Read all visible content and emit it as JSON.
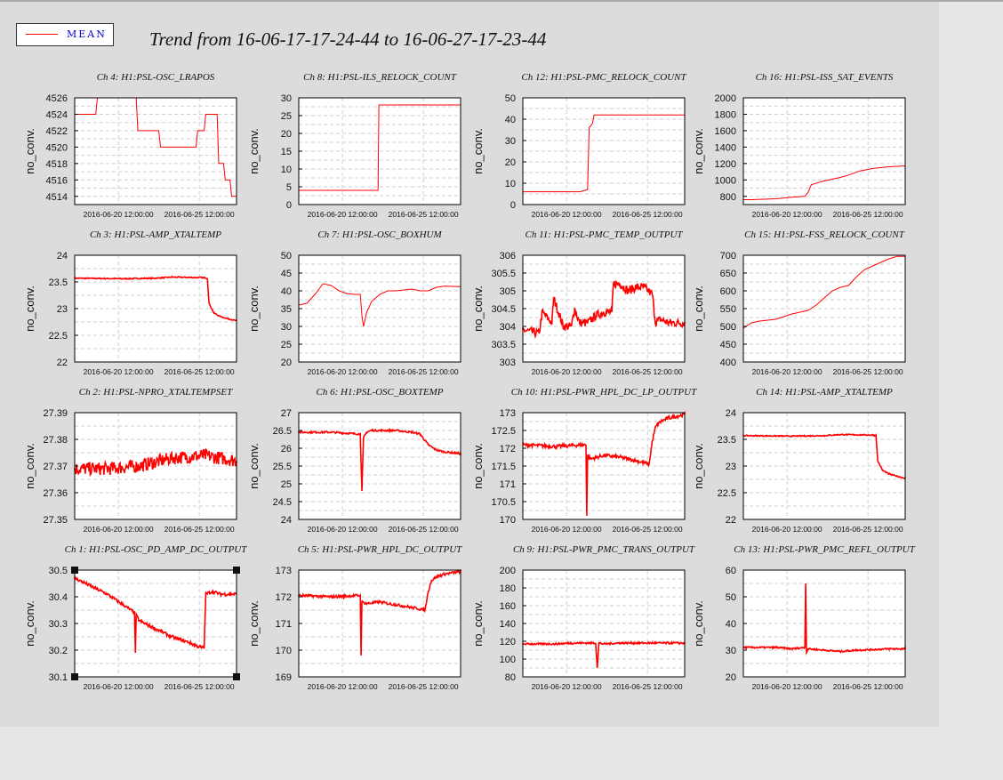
{
  "legend": {
    "label": "MEAN",
    "color": "#ff0000"
  },
  "title": "Trend from 16-06-17-17-24-44 to 16-06-27-17-23-44",
  "chart_data": [
    {
      "type": "line",
      "title": "Ch 4: H1:PSL-OSC_LRAPOS",
      "ylabel": "no_conv.",
      "ylim": [
        4513,
        4526
      ],
      "yticks": [
        4526,
        4524,
        4522,
        4520,
        4518,
        4516,
        4514
      ],
      "yticklabels": [
        "4526",
        "4524",
        "4522",
        "4520",
        "4518",
        "4516",
        "4514"
      ],
      "xticklabels": [
        "2016-06-20 12:00:00",
        "2016-06-25 12:00:00"
      ],
      "grid": true,
      "noise": 0,
      "x": [
        0,
        0.13,
        0.14,
        0.3,
        0.31,
        0.38,
        0.39,
        0.47,
        0.48,
        0.52,
        0.53,
        0.75,
        0.76,
        0.8,
        0.81,
        0.88,
        0.89,
        0.92,
        0.93,
        0.96,
        0.97,
        1.0
      ],
      "y": [
        4524,
        4524,
        4526,
        4526,
        4526,
        4526,
        4522,
        4522,
        4522,
        4522,
        4520,
        4520,
        4522,
        4522,
        4524,
        4524,
        4518,
        4518,
        4516,
        4516,
        4514,
        4514
      ]
    },
    {
      "type": "line",
      "title": "Ch 8: H1:PSL-ILS_RELOCK_COUNT",
      "ylabel": "no_conv.",
      "ylim": [
        0,
        30
      ],
      "yticks": [
        30,
        25,
        20,
        15,
        10,
        5,
        0
      ],
      "yticklabels": [
        "30",
        "25",
        "20",
        "15",
        "10",
        "5",
        "0"
      ],
      "xticklabels": [
        "2016-06-20 12:00:00",
        "2016-06-25 12:00:00"
      ],
      "grid": true,
      "noise": 0,
      "x": [
        0,
        0.49,
        0.495,
        1.0
      ],
      "y": [
        4,
        4,
        28,
        28
      ]
    },
    {
      "type": "line",
      "title": "Ch 12: H1:PSL-PMC_RELOCK_COUNT",
      "ylabel": "no_conv.",
      "ylim": [
        0,
        50
      ],
      "yticks": [
        50,
        40,
        30,
        20,
        10,
        0
      ],
      "yticklabels": [
        "50",
        "40",
        "30",
        "20",
        "10",
        "0"
      ],
      "xticklabels": [
        "2016-06-20 12:00:00",
        "2016-06-25 12:00:00"
      ],
      "grid": true,
      "noise": 0,
      "x": [
        0,
        0.35,
        0.351,
        0.4,
        0.41,
        0.43,
        0.44,
        1.0
      ],
      "y": [
        6,
        6,
        6,
        7,
        36,
        38,
        42,
        42
      ]
    },
    {
      "type": "line",
      "title": "Ch 16: H1:PSL-ISS_SAT_EVENTS",
      "ylabel": "no_conv.",
      "ylim": [
        700,
        2000
      ],
      "yticks": [
        2000,
        1800,
        1600,
        1400,
        1200,
        1000,
        800
      ],
      "yticklabels": [
        "2000",
        "1800",
        "1600",
        "1400",
        "1200",
        "1000",
        "800"
      ],
      "xticklabels": [
        "2016-06-20 12:00:00",
        "2016-06-25 12:00:00"
      ],
      "grid": true,
      "noise": 0,
      "x": [
        0,
        0.05,
        0.2,
        0.3,
        0.38,
        0.4,
        0.42,
        0.48,
        0.55,
        0.6,
        0.65,
        0.72,
        0.8,
        0.9,
        1.0
      ],
      "y": [
        760,
        760,
        770,
        790,
        800,
        850,
        940,
        980,
        1010,
        1030,
        1060,
        1110,
        1140,
        1160,
        1170
      ]
    },
    {
      "type": "line",
      "title": "Ch 3: H1:PSL-AMP_XTALTEMP",
      "ylabel": "no_conv.",
      "ylim": [
        22,
        24
      ],
      "yticks": [
        24,
        23.5,
        23,
        22.5,
        22
      ],
      "yticklabels": [
        "24",
        "23.5",
        "23",
        "22.5",
        "22"
      ],
      "xticklabels": [
        "2016-06-20 12:00:00",
        "2016-06-25 12:00:00"
      ],
      "grid": true,
      "noise": 0.01,
      "x": [
        0,
        0.3,
        0.5,
        0.6,
        0.8,
        0.82,
        0.83,
        0.86,
        0.9,
        1.0
      ],
      "y": [
        23.57,
        23.56,
        23.57,
        23.59,
        23.58,
        23.57,
        23.1,
        22.92,
        22.85,
        22.77
      ]
    },
    {
      "type": "line",
      "title": "Ch 7: H1:PSL-OSC_BOXHUM",
      "ylabel": "no_conv.",
      "ylim": [
        20,
        50
      ],
      "yticks": [
        50,
        45,
        40,
        35,
        30,
        25,
        20
      ],
      "yticklabels": [
        "50",
        "45",
        "40",
        "35",
        "30",
        "25",
        "20"
      ],
      "xticklabels": [
        "2016-06-20 12:00:00",
        "2016-06-25 12:00:00"
      ],
      "grid": true,
      "noise": 0,
      "x": [
        0,
        0.05,
        0.1,
        0.15,
        0.2,
        0.25,
        0.3,
        0.35,
        0.38,
        0.39,
        0.4,
        0.42,
        0.45,
        0.5,
        0.55,
        0.6,
        0.7,
        0.75,
        0.8,
        0.85,
        0.9,
        1.0
      ],
      "y": [
        36,
        36.5,
        39,
        42,
        41.5,
        40,
        39.2,
        39,
        39,
        33,
        30,
        34,
        37,
        39,
        40,
        40,
        40.5,
        40,
        40,
        41,
        41.3,
        41.2
      ]
    },
    {
      "type": "line",
      "title": "Ch 11: H1:PSL-PMC_TEMP_OUTPUT",
      "ylabel": "no_conv.",
      "ylim": [
        303,
        306
      ],
      "yticks": [
        306,
        305.5,
        305,
        304.5,
        304,
        303.5,
        303
      ],
      "yticklabels": [
        "306",
        "305.5",
        "305",
        "304.5",
        "304",
        "303.5",
        "303"
      ],
      "xticklabels": [
        "2016-06-20 12:00:00",
        "2016-06-25 12:00:00"
      ],
      "grid": true,
      "noise": 0.12,
      "x": [
        0,
        0.1,
        0.12,
        0.18,
        0.19,
        0.25,
        0.3,
        0.32,
        0.35,
        0.4,
        0.45,
        0.5,
        0.55,
        0.56,
        0.6,
        0.65,
        0.7,
        0.75,
        0.8,
        0.82,
        0.85,
        0.9,
        1.0
      ],
      "y": [
        303.9,
        303.8,
        304.4,
        304.1,
        304.8,
        304.0,
        304.0,
        304.5,
        304.1,
        304.1,
        304.3,
        304.4,
        304.4,
        305.2,
        305.2,
        305.0,
        305.1,
        305.1,
        304.9,
        304.1,
        304.2,
        304.1,
        304.1
      ]
    },
    {
      "type": "line",
      "title": "Ch 15: H1:PSL-FSS_RELOCK_COUNT",
      "ylabel": "no_conv.",
      "ylim": [
        400,
        700
      ],
      "yticks": [
        700,
        650,
        600,
        550,
        500,
        450,
        400
      ],
      "yticklabels": [
        "700",
        "650",
        "600",
        "550",
        "500",
        "450",
        "400"
      ],
      "xticklabels": [
        "2016-06-20 12:00:00",
        "2016-06-25 12:00:00"
      ],
      "grid": true,
      "noise": 0,
      "x": [
        0,
        0.05,
        0.1,
        0.2,
        0.3,
        0.35,
        0.4,
        0.45,
        0.5,
        0.55,
        0.6,
        0.65,
        0.7,
        0.75,
        0.8,
        0.85,
        0.9,
        0.95,
        1.0
      ],
      "y": [
        495,
        510,
        515,
        520,
        535,
        540,
        545,
        560,
        580,
        600,
        610,
        615,
        640,
        660,
        670,
        680,
        690,
        697,
        697
      ]
    },
    {
      "type": "line",
      "title": "Ch 2: H1:PSL-NPRO_XTALTEMPSET",
      "ylabel": "no_conv.",
      "ylim": [
        27.35,
        27.39
      ],
      "yticks": [
        27.39,
        27.38,
        27.37,
        27.36,
        27.35
      ],
      "yticklabels": [
        "27.39",
        "27.38",
        "27.37",
        "27.36",
        "27.35"
      ],
      "xticklabels": [
        "2016-06-20 12:00:00",
        "2016-06-25 12:00:00"
      ],
      "grid": true,
      "noise": 0.0025,
      "x": [
        0,
        0.2,
        0.4,
        0.6,
        0.8,
        1.0
      ],
      "y": [
        27.369,
        27.369,
        27.37,
        27.373,
        27.374,
        27.372
      ]
    },
    {
      "type": "line",
      "title": "Ch 6: H1:PSL-OSC_BOXTEMP",
      "ylabel": "no_conv.",
      "ylim": [
        24,
        27
      ],
      "yticks": [
        27,
        26.5,
        26,
        25.5,
        25,
        24.5,
        24
      ],
      "yticklabels": [
        "27",
        "26.5",
        "26",
        "25.5",
        "25",
        "24.5",
        "24"
      ],
      "xticklabels": [
        "2016-06-20 12:00:00",
        "2016-06-25 12:00:00"
      ],
      "grid": true,
      "noise": 0.025,
      "x": [
        0,
        0.2,
        0.38,
        0.39,
        0.4,
        0.42,
        0.45,
        0.5,
        0.6,
        0.7,
        0.75,
        0.8,
        0.85,
        0.9,
        1.0
      ],
      "y": [
        26.45,
        26.45,
        26.4,
        24.8,
        26.3,
        26.45,
        26.5,
        26.5,
        26.5,
        26.45,
        26.4,
        26.1,
        25.95,
        25.9,
        25.85
      ]
    },
    {
      "type": "line",
      "title": "Ch 10: H1:PSL-PWR_HPL_DC_LP_OUTPUT",
      "ylabel": "no_conv.",
      "ylim": [
        170,
        173
      ],
      "yticks": [
        173,
        172.5,
        172,
        171.5,
        171,
        170.5,
        170
      ],
      "yticklabels": [
        "173",
        "172.5",
        "172",
        "171.5",
        "171",
        "170.5",
        "170"
      ],
      "xticklabels": [
        "2016-06-20 12:00:00",
        "2016-06-25 12:00:00"
      ],
      "grid": true,
      "noise": 0.05,
      "x": [
        0,
        0.2,
        0.39,
        0.395,
        0.4,
        0.42,
        0.5,
        0.6,
        0.7,
        0.78,
        0.8,
        0.82,
        0.85,
        0.9,
        1.0
      ],
      "y": [
        172.1,
        172.05,
        172.1,
        170.1,
        171.8,
        171.7,
        171.8,
        171.75,
        171.65,
        171.55,
        172.2,
        172.6,
        172.75,
        172.85,
        172.95
      ]
    },
    {
      "type": "line",
      "title": "Ch 14: H1:PSL-AMP_XTALTEMP",
      "ylabel": "no_conv.",
      "ylim": [
        22,
        24
      ],
      "yticks": [
        24,
        23.5,
        23,
        22.5,
        22
      ],
      "yticklabels": [
        "24",
        "23.5",
        "23",
        "22.5",
        "22"
      ],
      "xticklabels": [
        "2016-06-20 12:00:00",
        "2016-06-25 12:00:00"
      ],
      "grid": true,
      "noise": 0.01,
      "x": [
        0,
        0.3,
        0.5,
        0.6,
        0.8,
        0.82,
        0.83,
        0.86,
        0.9,
        1.0
      ],
      "y": [
        23.57,
        23.56,
        23.57,
        23.59,
        23.58,
        23.57,
        23.1,
        22.92,
        22.85,
        22.77
      ]
    },
    {
      "type": "line",
      "title": "Ch 1: H1:PSL-OSC_PD_AMP_DC_OUTPUT",
      "ylabel": "no_conv.",
      "ylim": [
        30.1,
        30.5
      ],
      "yticks": [
        30.5,
        30.4,
        30.3,
        30.2,
        30.1
      ],
      "yticklabels": [
        "30.5",
        "30.4",
        "30.3",
        "30.2",
        "30.1"
      ],
      "xticklabels": [
        "2016-06-20 12:00:00",
        "2016-06-25 12:00:00"
      ],
      "grid": true,
      "noise": 0.006,
      "x": [
        0,
        0.1,
        0.2,
        0.3,
        0.37,
        0.375,
        0.38,
        0.4,
        0.5,
        0.6,
        0.7,
        0.78,
        0.8,
        0.81,
        0.85,
        0.9,
        1.0
      ],
      "y": [
        30.47,
        30.44,
        30.41,
        30.37,
        30.34,
        30.19,
        30.33,
        30.31,
        30.28,
        30.25,
        30.23,
        30.21,
        30.21,
        30.41,
        30.42,
        30.41,
        30.41
      ]
    },
    {
      "type": "line",
      "title": "Ch 5: H1:PSL-PWR_HPL_DC_OUTPUT",
      "ylabel": "no_conv.",
      "ylim": [
        169,
        173
      ],
      "yticks": [
        173,
        172,
        171,
        170,
        169
      ],
      "yticklabels": [
        "173",
        "172",
        "171",
        "170",
        "169"
      ],
      "xticklabels": [
        "2016-06-20 12:00:00",
        "2016-06-25 12:00:00"
      ],
      "grid": true,
      "noise": 0.05,
      "x": [
        0,
        0.2,
        0.38,
        0.385,
        0.39,
        0.42,
        0.5,
        0.6,
        0.7,
        0.78,
        0.8,
        0.82,
        0.85,
        0.9,
        1.0
      ],
      "y": [
        172.05,
        172.0,
        172.05,
        169.8,
        171.8,
        171.75,
        171.8,
        171.7,
        171.6,
        171.5,
        172.2,
        172.6,
        172.75,
        172.85,
        172.95
      ]
    },
    {
      "type": "line",
      "title": "Ch 9: H1:PSL-PWR_PMC_TRANS_OUTPUT",
      "ylabel": "no_conv.",
      "ylim": [
        80,
        200
      ],
      "yticks": [
        200,
        180,
        160,
        140,
        120,
        100,
        80
      ],
      "yticklabels": [
        "200",
        "180",
        "160",
        "140",
        "120",
        "100",
        "80"
      ],
      "xticklabels": [
        "2016-06-20 12:00:00",
        "2016-06-25 12:00:00"
      ],
      "grid": true,
      "noise": 1,
      "x": [
        0,
        0.2,
        0.3,
        0.4,
        0.45,
        0.46,
        0.47,
        0.5,
        0.6,
        0.7,
        0.8,
        0.9,
        1.0
      ],
      "y": [
        117,
        117,
        118,
        118,
        118,
        90,
        118,
        117,
        118,
        118,
        118,
        118,
        118
      ]
    },
    {
      "type": "line",
      "title": "Ch 13: H1:PSL-PWR_PMC_REFL_OUTPUT",
      "ylabel": "no_conv.",
      "ylim": [
        20,
        60
      ],
      "yticks": [
        60,
        50,
        40,
        30,
        20
      ],
      "yticklabels": [
        "60",
        "50",
        "40",
        "30",
        "20"
      ],
      "xticklabels": [
        "2016-06-20 12:00:00",
        "2016-06-25 12:00:00"
      ],
      "grid": true,
      "noise": 0.3,
      "x": [
        0,
        0.2,
        0.3,
        0.38,
        0.385,
        0.39,
        0.4,
        0.5,
        0.6,
        0.7,
        0.8,
        0.9,
        1.0
      ],
      "y": [
        31,
        31,
        30.5,
        31,
        55,
        29,
        30.5,
        30,
        29.5,
        30,
        30.2,
        30.5,
        30.5
      ]
    }
  ]
}
